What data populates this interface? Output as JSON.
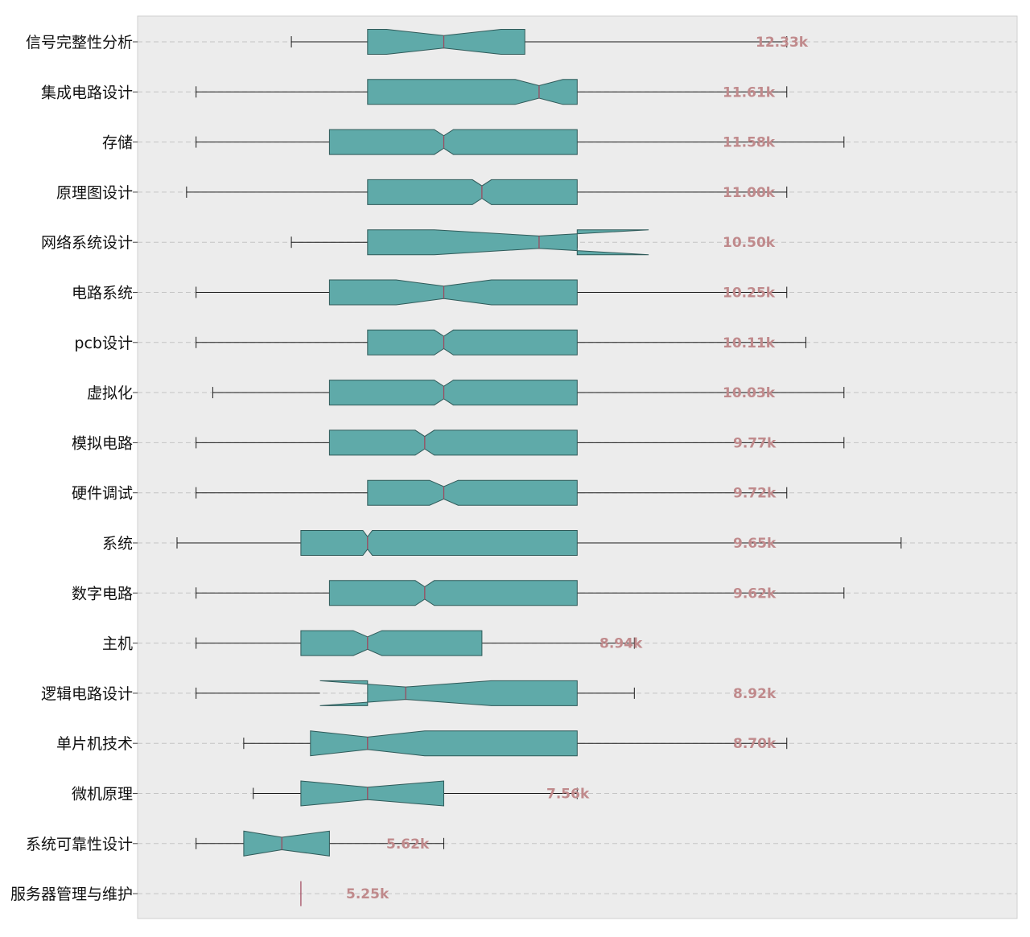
{
  "chart_data": {
    "type": "boxplot",
    "orientation": "horizontal",
    "notched": true,
    "grid": "horizontal dashed",
    "colors": {
      "plot_background": "#ececec",
      "plot_border": "#cfcfcf",
      "box_fill": "#5faaa9",
      "box_edge": "#2f5a59",
      "median": "#a0445a",
      "whisker": "#1a1a1a",
      "value_label": "#c08a8c",
      "gridline": "#c4c4c4"
    },
    "categories": [
      "信号完整性分析",
      "集成电路设计",
      "存储",
      "原理图设计",
      "网络系统设计",
      "电路系统",
      "pcb设计",
      "虚拟化",
      "模拟电路",
      "硬件调试",
      "系统",
      "数字电路",
      "主机",
      "逻辑电路设计",
      "单片机技术",
      "微机原理",
      "系统可靠性设计",
      "服务器管理与维护"
    ],
    "value_labels": [
      "12.33k",
      "11.61k",
      "11.58k",
      "11.00k",
      "10.50k",
      "10.25k",
      "10.11k",
      "10.03k",
      "9.77k",
      "9.72k",
      "9.65k",
      "9.62k",
      "8.94k",
      "8.92k",
      "8.70k",
      "7.56k",
      "5.62k",
      "5.25k"
    ],
    "boxes": [
      {
        "whislo": 4.9,
        "q1": 6.5,
        "med": 8.1,
        "q3": 9.8,
        "whishi": 15.3,
        "cilo": 6.9,
        "cihi": 9.3
      },
      {
        "whislo": 2.9,
        "q1": 6.5,
        "med": 10.1,
        "q3": 10.9,
        "whishi": 15.3,
        "cilo": 9.6,
        "cihi": 10.6
      },
      {
        "whislo": 2.9,
        "q1": 5.7,
        "med": 8.1,
        "q3": 10.9,
        "whishi": 16.5,
        "cilo": 7.9,
        "cihi": 8.3
      },
      {
        "whislo": 2.7,
        "q1": 6.5,
        "med": 8.9,
        "q3": 10.9,
        "whishi": 15.3,
        "cilo": 8.7,
        "cihi": 9.1
      },
      {
        "whislo": 4.9,
        "q1": 6.5,
        "med": 10.1,
        "q3": 10.9,
        "whishi": 10.9,
        "cilo": 7.9,
        "cihi": 12.4
      },
      {
        "whislo": 2.9,
        "q1": 5.7,
        "med": 8.1,
        "q3": 10.9,
        "whishi": 15.3,
        "cilo": 7.1,
        "cihi": 9.1
      },
      {
        "whislo": 2.9,
        "q1": 6.5,
        "med": 8.1,
        "q3": 10.9,
        "whishi": 15.7,
        "cilo": 7.9,
        "cihi": 8.3
      },
      {
        "whislo": 3.25,
        "q1": 5.7,
        "med": 8.1,
        "q3": 10.9,
        "whishi": 16.5,
        "cilo": 7.9,
        "cihi": 8.3
      },
      {
        "whislo": 2.9,
        "q1": 5.7,
        "med": 7.7,
        "q3": 10.9,
        "whishi": 16.5,
        "cilo": 7.5,
        "cihi": 7.9
      },
      {
        "whislo": 2.9,
        "q1": 6.5,
        "med": 8.1,
        "q3": 10.9,
        "whishi": 15.3,
        "cilo": 7.8,
        "cihi": 8.4
      },
      {
        "whislo": 2.5,
        "q1": 5.1,
        "med": 6.5,
        "q3": 10.9,
        "whishi": 17.7,
        "cilo": 6.4,
        "cihi": 6.6
      },
      {
        "whislo": 2.9,
        "q1": 5.7,
        "med": 7.7,
        "q3": 10.9,
        "whishi": 16.5,
        "cilo": 7.5,
        "cihi": 7.9
      },
      {
        "whislo": 2.9,
        "q1": 5.1,
        "med": 6.5,
        "q3": 8.9,
        "whishi": 12.1,
        "cilo": 6.2,
        "cihi": 6.8
      },
      {
        "whislo": 2.9,
        "q1": 6.5,
        "med": 7.3,
        "q3": 10.9,
        "whishi": 10.9,
        "whislo_cap": 2.9,
        "whishi_cap": 12.1,
        "cilo": 5.5,
        "cihi": 9.1
      },
      {
        "whislo": 3.9,
        "q1": 5.3,
        "med": 6.5,
        "q3": 10.9,
        "whishi": 15.3,
        "cilo": 5.3,
        "cihi": 7.7
      },
      {
        "whislo": 4.1,
        "q1": 5.1,
        "med": 6.5,
        "q3": 8.1,
        "whishi": 10.9,
        "cilo": 5.1,
        "cihi": 8.1
      },
      {
        "whislo": 2.9,
        "q1": 3.9,
        "med": 4.7,
        "q3": 5.7,
        "whishi": 8.1,
        "cilo": 3.9,
        "cihi": 5.7
      },
      {
        "whislo": 5.1,
        "q1": 5.1,
        "med": 5.1,
        "q3": 5.1,
        "whishi": 5.1,
        "cilo": 5.1,
        "cihi": 5.1
      }
    ]
  }
}
